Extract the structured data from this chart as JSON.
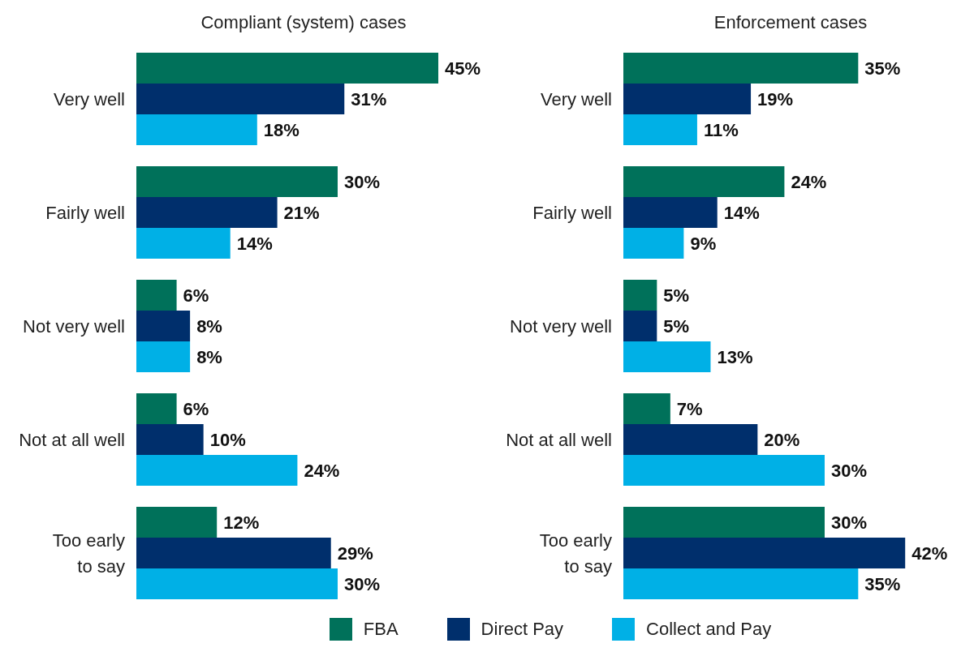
{
  "chart_data": [
    {
      "type": "bar",
      "orientation": "horizontal",
      "title": "Compliant (system) cases",
      "categories": [
        "Very well",
        "Fairly well",
        "Not very well",
        "Not at all well",
        "Too early to say"
      ],
      "legend": "bottom",
      "series": [
        {
          "name": "FBA",
          "color": "#00715a",
          "values": [
            45,
            30,
            6,
            6,
            12
          ],
          "value_labels": [
            "45%",
            "30%",
            "6%",
            "6%",
            "12%"
          ]
        },
        {
          "name": "Direct Pay",
          "color": "#002f6c",
          "values": [
            31,
            21,
            8,
            10,
            29
          ],
          "value_labels": [
            "31%",
            "21%",
            "8%",
            "10%",
            "29%"
          ]
        },
        {
          "name": "Collect and Pay",
          "color": "#00b0e6",
          "values": [
            18,
            14,
            8,
            24,
            30
          ],
          "value_labels": [
            "18%",
            "14%",
            "8%",
            "24%",
            "30%"
          ]
        }
      ]
    },
    {
      "type": "bar",
      "orientation": "horizontal",
      "title": "Enforcement cases",
      "categories": [
        "Very well",
        "Fairly well",
        "Not very well",
        "Not at all well",
        "Too early to say"
      ],
      "series": [
        {
          "color": "#00715a",
          "values": [
            35,
            24,
            5,
            7,
            30
          ],
          "value_labels": [
            "35%",
            "24%",
            "5%",
            "7%",
            "30%"
          ]
        },
        {
          "color": "#002f6c",
          "values": [
            19,
            14,
            5,
            20,
            42
          ],
          "value_labels": [
            "19%",
            "14%",
            "5%",
            "20%",
            "42%"
          ]
        },
        {
          "color": "#00b0e6",
          "values": [
            11,
            9,
            13,
            30,
            35
          ],
          "value_labels": [
            "11%",
            "9%",
            "13%",
            "30%",
            "35%"
          ]
        }
      ]
    }
  ]
}
